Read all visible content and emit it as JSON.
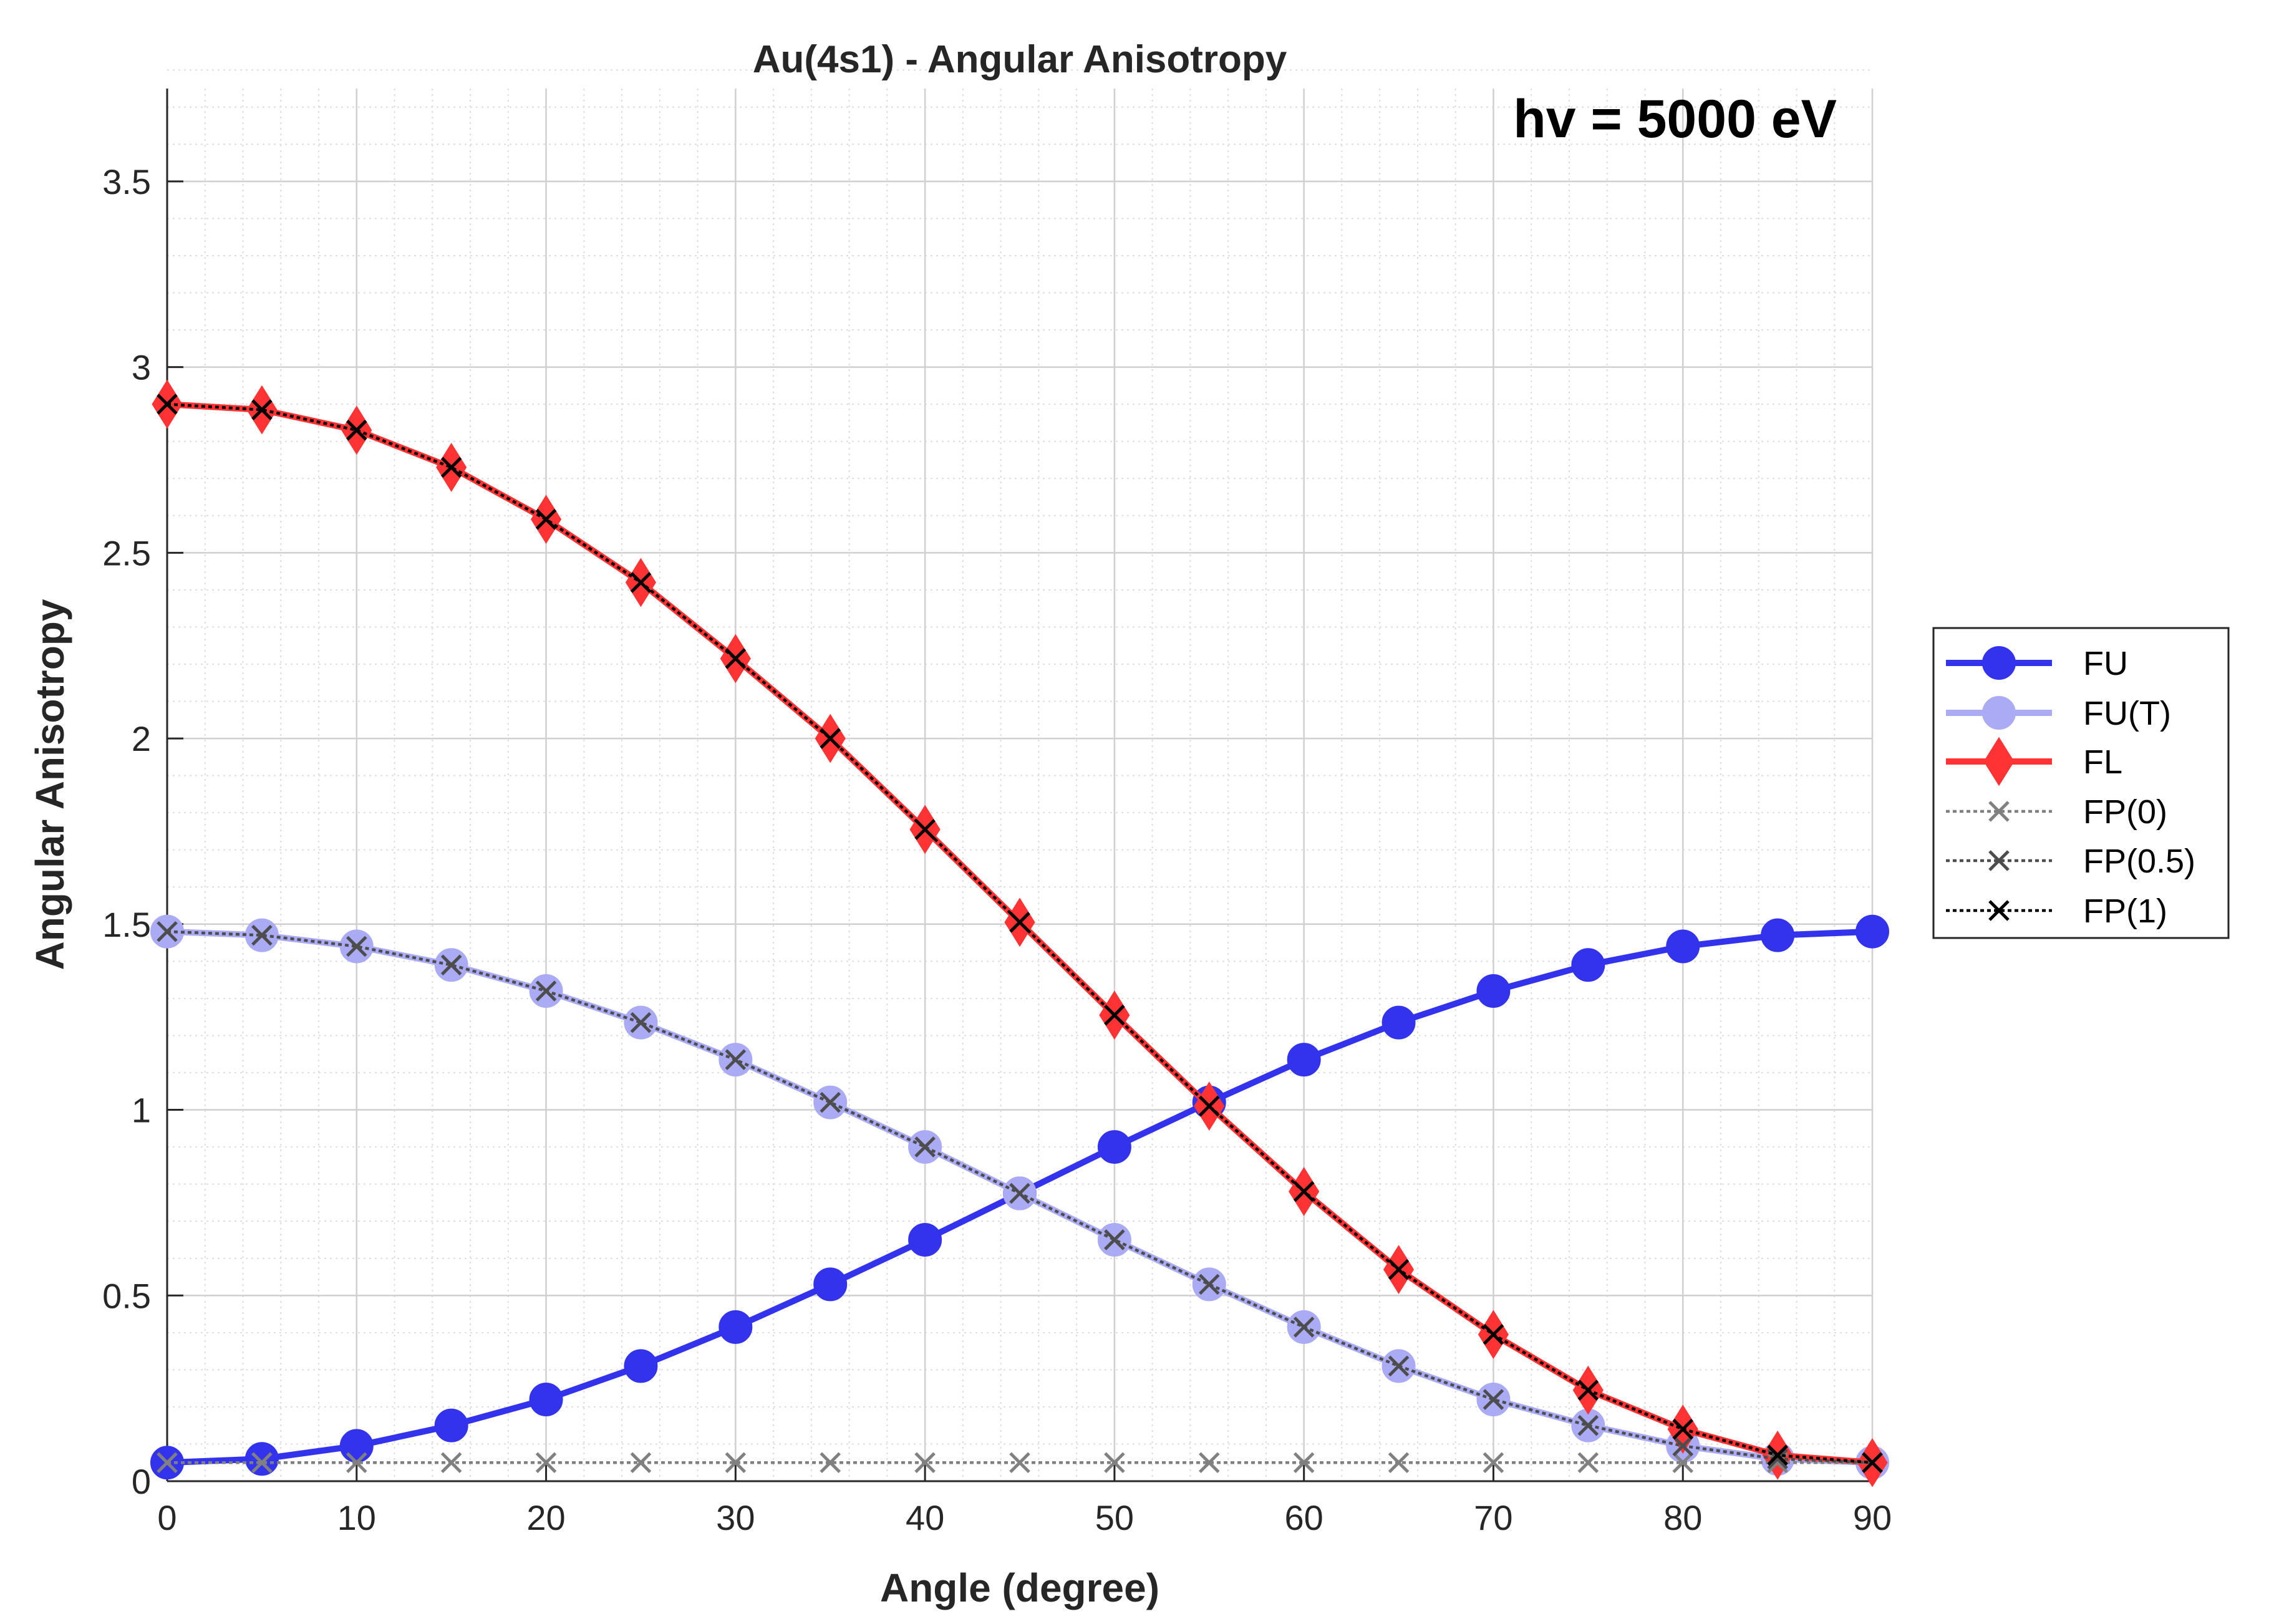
{
  "chart_data": {
    "type": "line",
    "title": "Au(4s1) - Angular Anisotropy",
    "annotation": "hv = 5000 eV",
    "xlabel": "Angle (degree)",
    "ylabel": "Angular Anisotropy",
    "xlim": [
      0,
      90
    ],
    "ylim": [
      0,
      3.75
    ],
    "xticks": [
      0,
      10,
      20,
      30,
      40,
      50,
      60,
      70,
      80,
      90
    ],
    "xtick_labels": [
      "0",
      "10",
      "20",
      "30",
      "40",
      "50",
      "60",
      "70",
      "80",
      "90"
    ],
    "yticks": [
      0,
      0.5,
      1,
      1.5,
      2,
      2.5,
      3,
      3.5
    ],
    "ytick_labels": [
      "0",
      "0.5",
      "1",
      "1.5",
      "2",
      "2.5",
      "3",
      "3.5"
    ],
    "grid": true,
    "minor_grid": true,
    "legend_position": "outside-right",
    "x": [
      0,
      5,
      10,
      15,
      20,
      25,
      30,
      35,
      40,
      45,
      50,
      55,
      60,
      65,
      70,
      75,
      80,
      85,
      90
    ],
    "series": [
      {
        "name": "FU",
        "color": "#3333ee",
        "marker": "circle",
        "values": [
          0.05,
          0.06,
          0.095,
          0.15,
          0.22,
          0.31,
          0.415,
          0.53,
          0.65,
          0.775,
          0.9,
          1.02,
          1.135,
          1.235,
          1.32,
          1.39,
          1.44,
          1.47,
          1.48
        ]
      },
      {
        "name": "FU(T)",
        "color": "#aaaaf5",
        "marker": "circle",
        "values": [
          1.48,
          1.47,
          1.44,
          1.39,
          1.32,
          1.235,
          1.135,
          1.02,
          0.9,
          0.775,
          0.65,
          0.53,
          0.415,
          0.31,
          0.22,
          0.15,
          0.095,
          0.06,
          0.05
        ]
      },
      {
        "name": "FL",
        "color": "#ff3333",
        "marker": "diamond",
        "values": [
          2.9,
          2.885,
          2.83,
          2.73,
          2.59,
          2.42,
          2.215,
          2.0,
          1.755,
          1.505,
          1.255,
          1.01,
          0.78,
          0.57,
          0.395,
          0.245,
          0.14,
          0.07,
          0.05
        ]
      },
      {
        "name": "FP(0)",
        "color": "#808080",
        "marker": "x",
        "values": [
          0.05,
          0.05,
          0.05,
          0.05,
          0.05,
          0.05,
          0.05,
          0.05,
          0.05,
          0.05,
          0.05,
          0.05,
          0.05,
          0.05,
          0.05,
          0.05,
          0.05,
          0.05,
          0.05
        ]
      },
      {
        "name": "FP(0.5)",
        "color": "#4d4d4d",
        "marker": "x",
        "values": [
          1.48,
          1.47,
          1.44,
          1.39,
          1.32,
          1.235,
          1.135,
          1.02,
          0.9,
          0.775,
          0.65,
          0.53,
          0.415,
          0.31,
          0.22,
          0.15,
          0.095,
          0.06,
          0.05
        ]
      },
      {
        "name": "FP(1)",
        "color": "#000000",
        "marker": "x",
        "values": [
          2.9,
          2.885,
          2.83,
          2.73,
          2.59,
          2.42,
          2.215,
          2.0,
          1.755,
          1.505,
          1.255,
          1.01,
          0.78,
          0.57,
          0.395,
          0.245,
          0.14,
          0.07,
          0.05
        ]
      }
    ]
  }
}
